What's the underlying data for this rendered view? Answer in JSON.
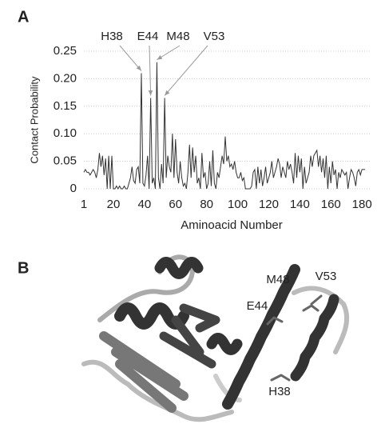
{
  "chart_data": {
    "type": "line",
    "panel_label": "A",
    "xlabel": "Aminoacid Number",
    "ylabel": "Contact Probability",
    "color": "#333333",
    "x": [
      1,
      2,
      3,
      4,
      5,
      6,
      7,
      8,
      9,
      10,
      11,
      12,
      13,
      14,
      15,
      16,
      17,
      18,
      19,
      20,
      21,
      22,
      23,
      24,
      25,
      26,
      27,
      28,
      29,
      30,
      31,
      32,
      33,
      34,
      35,
      36,
      37,
      38,
      39,
      40,
      41,
      42,
      43,
      44,
      45,
      46,
      47,
      48,
      49,
      50,
      51,
      52,
      53,
      54,
      55,
      56,
      57,
      58,
      59,
      60,
      61,
      62,
      63,
      64,
      65,
      66,
      67,
      68,
      69,
      70,
      71,
      72,
      73,
      74,
      75,
      76,
      77,
      78,
      79,
      80,
      81,
      82,
      83,
      84,
      85,
      86,
      87,
      88,
      89,
      90,
      91,
      92,
      93,
      94,
      95,
      96,
      97,
      98,
      99,
      100,
      101,
      102,
      103,
      104,
      105,
      106,
      107,
      108,
      109,
      110,
      111,
      112,
      113,
      114,
      115,
      116,
      117,
      118,
      119,
      120,
      121,
      122,
      123,
      124,
      125,
      126,
      127,
      128,
      129,
      130,
      131,
      132,
      133,
      134,
      135,
      136,
      137,
      138,
      139,
      140,
      141,
      142,
      143,
      144,
      145,
      146,
      147,
      148,
      149,
      150,
      151,
      152,
      153,
      154,
      155,
      156,
      157,
      158,
      159,
      160,
      161,
      162,
      163,
      164,
      165,
      166,
      167,
      168,
      169,
      170,
      171,
      172,
      173,
      174,
      175,
      176,
      177,
      178,
      179,
      180,
      181,
      182
    ],
    "values": [
      0.03,
      0.035,
      0.03,
      0.03,
      0.025,
      0.03,
      0.035,
      0.03,
      0.02,
      0.035,
      0.065,
      0.04,
      0.06,
      0.025,
      0.055,
      0.0,
      0.06,
      0.0,
      0.06,
      0.0,
      0.0,
      0.005,
      0.0,
      0.005,
      0.0,
      0.0,
      0.005,
      0.0,
      0.0,
      0.01,
      0.02,
      0.04,
      0.015,
      0.01,
      0.035,
      0.04,
      0.01,
      0.21,
      0.01,
      0.005,
      0.025,
      0.06,
      0.0,
      0.165,
      0.01,
      0.02,
      0.0,
      0.23,
      0.02,
      0.0,
      0.045,
      0.01,
      0.165,
      0.02,
      0.06,
      0.04,
      0.03,
      0.1,
      0.02,
      0.09,
      0.03,
      0.01,
      0.05,
      0.02,
      0.005,
      0.01,
      0.0,
      0.03,
      0.08,
      0.02,
      0.075,
      0.03,
      0.06,
      0.01,
      0.02,
      0.0,
      0.065,
      0.02,
      0.03,
      0.0,
      0.01,
      0.05,
      0.005,
      0.07,
      0.01,
      0.0,
      0.03,
      0.02,
      0.04,
      0.06,
      0.045,
      0.095,
      0.05,
      0.06,
      0.04,
      0.045,
      0.035,
      0.05,
      0.03,
      0.02,
      0.02,
      0.03,
      0.015,
      0.02,
      0.0,
      0.0,
      0.0,
      0.0,
      0.005,
      0.03,
      0.035,
      0.0,
      0.04,
      0.01,
      0.035,
      0.005,
      0.02,
      0.04,
      0.01,
      0.02,
      0.03,
      0.05,
      0.02,
      0.03,
      0.04,
      0.055,
      0.045,
      0.02,
      0.04,
      0.03,
      0.02,
      0.05,
      0.035,
      0.045,
      0.03,
      0.01,
      0.065,
      0.02,
      0.06,
      0.03,
      0.055,
      0.0,
      0.04,
      0.01,
      0.02,
      0.03,
      0.06,
      0.04,
      0.06,
      0.065,
      0.07,
      0.04,
      0.06,
      0.03,
      0.055,
      0.02,
      0.06,
      0.0,
      0.04,
      0.01,
      0.05,
      0.025,
      0.035,
      0.0,
      0.03,
      0.02,
      0.035,
      0.03,
      0.025,
      0.03,
      0.0,
      0.02,
      0.035,
      0.03,
      0.02,
      0.005,
      0.03,
      0.035,
      0.025,
      0.035,
      0.035,
      0.035
    ],
    "xlim": [
      1,
      183
    ],
    "ylim": [
      0,
      0.25
    ],
    "xticks": [
      1,
      20,
      40,
      60,
      80,
      100,
      120,
      140,
      160,
      180
    ],
    "yticks": [
      0,
      0.05,
      {
        "value": 0.1,
        "label": "0.10"
      },
      0.15,
      {
        "value": 0.2,
        "label": "0.20"
      },
      0.25
    ],
    "grid": true,
    "annotations": [
      {
        "text": "H38",
        "x": 38
      },
      {
        "text": "E44",
        "x": 44
      },
      {
        "text": "M48",
        "x": 48
      },
      {
        "text": "V53",
        "x": 53
      }
    ]
  },
  "structure": {
    "panel_label": "B",
    "labels": [
      "M48",
      "V53",
      "E44",
      "H38"
    ]
  }
}
